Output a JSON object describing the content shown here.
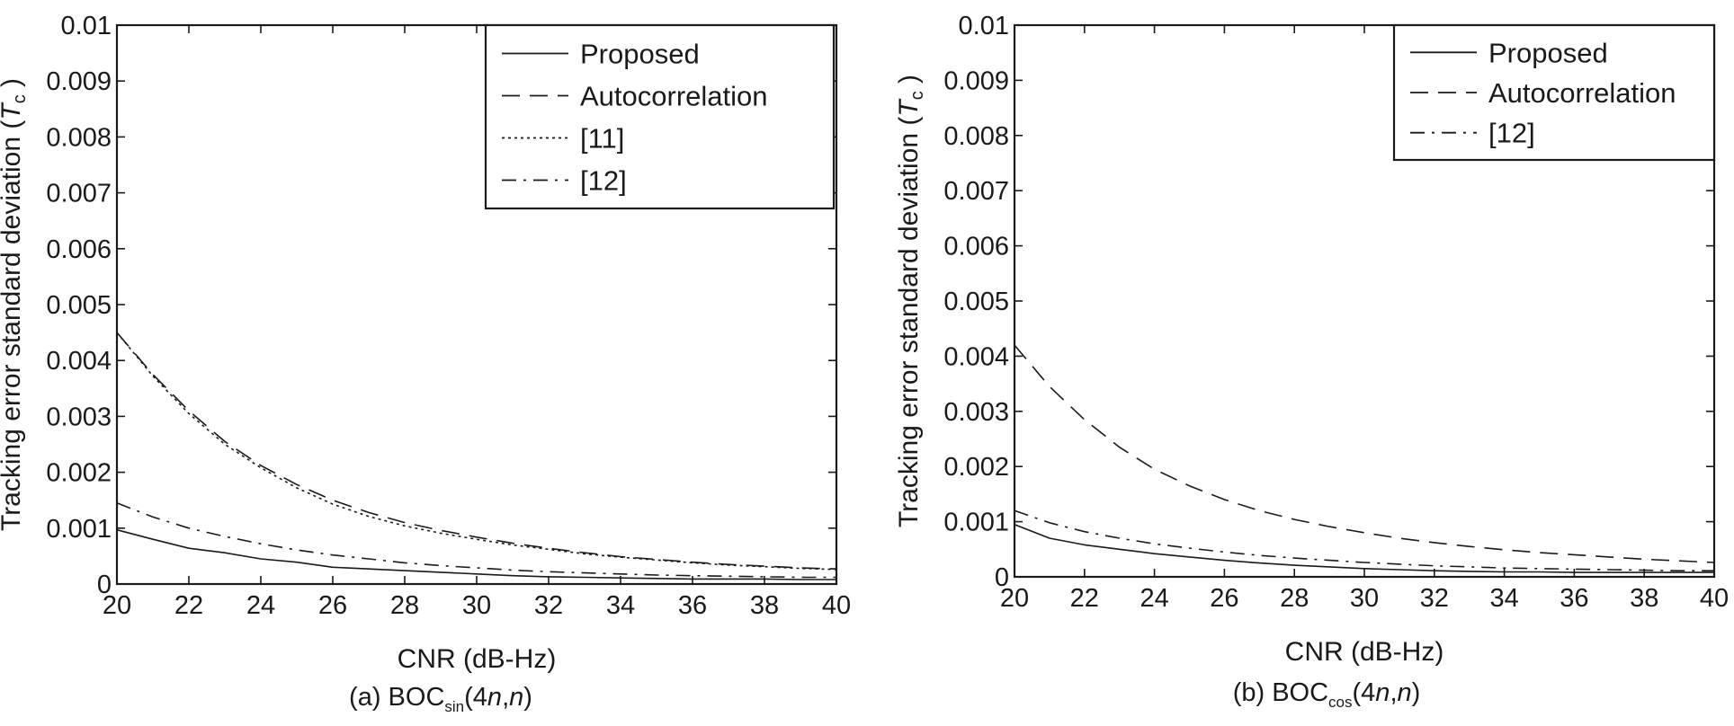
{
  "chart_data": [
    {
      "type": "line",
      "caption": {
        "prefix": "(a) BOC",
        "subscript": "sin",
        "suffix_open": "(4",
        "n1": "n",
        "comma": ",",
        "n2": "n",
        "suffix_close": ")"
      },
      "xlabel": "CNR (dB-Hz)",
      "ylabel": "Tracking error standard deviation (",
      "ylabel_italic": "T",
      "ylabel_sub": "c",
      "ylabel_close": ")",
      "xlim": [
        20,
        40
      ],
      "ylim": [
        0,
        0.01
      ],
      "xticks": [
        "20",
        "22",
        "24",
        "26",
        "28",
        "30",
        "32",
        "34",
        "36",
        "38",
        "40"
      ],
      "yticks": [
        "0",
        "0.001",
        "0.002",
        "0.003",
        "0.004",
        "0.005",
        "0.006",
        "0.007",
        "0.008",
        "0.009",
        "0.01"
      ],
      "grid": false,
      "legend_position": "top-right",
      "x": [
        20,
        21,
        22,
        23,
        24,
        25,
        26,
        27,
        28,
        29,
        30,
        31,
        32,
        33,
        34,
        35,
        36,
        37,
        38,
        39,
        40
      ],
      "series": [
        {
          "name": "Proposed",
          "style": "solid",
          "values": [
            0.00097,
            0.0008,
            0.00064,
            0.00056,
            0.00045,
            0.00039,
            0.0003,
            0.00027,
            0.00024,
            0.00021,
            0.00018,
            0.00015,
            0.00013,
            0.00012,
            0.00011,
            0.0001,
            9e-05,
            9e-05,
            9e-05,
            8e-05,
            8e-05
          ]
        },
        {
          "name": "Autocorrelation",
          "style": "dashed",
          "values": [
            0.0045,
            0.00375,
            0.0031,
            0.00255,
            0.00212,
            0.00178,
            0.0015,
            0.00128,
            0.0011,
            0.00096,
            0.00084,
            0.00073,
            0.00064,
            0.00056,
            0.00049,
            0.00044,
            0.00039,
            0.00035,
            0.00032,
            0.00029,
            0.00027
          ]
        },
        {
          "name": "[11]",
          "style": "dotted",
          "values": [
            0.0045,
            0.00372,
            0.00305,
            0.0025,
            0.00208,
            0.00172,
            0.00143,
            0.00121,
            0.00104,
            0.00091,
            0.0008,
            0.0007,
            0.00062,
            0.00054,
            0.00048,
            0.00043,
            0.00038,
            0.00034,
            0.00031,
            0.00028,
            0.00026
          ]
        },
        {
          "name": "[12]",
          "style": "dashdot",
          "values": [
            0.00145,
            0.0012,
            0.001,
            0.00085,
            0.00072,
            0.00061,
            0.00052,
            0.00045,
            0.00038,
            0.00033,
            0.00029,
            0.00025,
            0.00022,
            0.0002,
            0.00018,
            0.00016,
            0.00015,
            0.00014,
            0.00013,
            0.00012,
            0.00012
          ]
        }
      ]
    },
    {
      "type": "line",
      "caption": {
        "prefix": "(b) BOC",
        "subscript": "cos",
        "suffix_open": "(4",
        "n1": "n",
        "comma": ",",
        "n2": "n",
        "suffix_close": ")"
      },
      "xlabel": "CNR (dB-Hz)",
      "ylabel": "Tracking error standard deviation (",
      "ylabel_italic": "T",
      "ylabel_sub": "c",
      "ylabel_close": ")",
      "xlim": [
        20,
        40
      ],
      "ylim": [
        0,
        0.01
      ],
      "xticks": [
        "20",
        "22",
        "24",
        "26",
        "28",
        "30",
        "32",
        "34",
        "36",
        "38",
        "40"
      ],
      "yticks": [
        "0",
        "0.001",
        "0.002",
        "0.003",
        "0.004",
        "0.005",
        "0.006",
        "0.007",
        "0.008",
        "0.009",
        "0.01"
      ],
      "grid": false,
      "legend_position": "top-right",
      "x": [
        20,
        21,
        22,
        23,
        24,
        25,
        26,
        27,
        28,
        29,
        30,
        31,
        32,
        33,
        34,
        35,
        36,
        37,
        38,
        39,
        40
      ],
      "series": [
        {
          "name": "Proposed",
          "style": "solid",
          "values": [
            0.00095,
            0.0007,
            0.00058,
            0.0005,
            0.00042,
            0.00036,
            0.0003,
            0.00025,
            0.00021,
            0.00018,
            0.00015,
            0.00013,
            0.00011,
            0.0001,
            9e-05,
            9e-05,
            8e-05,
            8e-05,
            8e-05,
            8e-05,
            8e-05
          ]
        },
        {
          "name": "Autocorrelation",
          "style": "dashed",
          "values": [
            0.0042,
            0.00345,
            0.00285,
            0.00235,
            0.00195,
            0.00165,
            0.0014,
            0.0012,
            0.00104,
            0.00091,
            0.0008,
            0.0007,
            0.00062,
            0.00055,
            0.00049,
            0.00044,
            0.0004,
            0.00036,
            0.00032,
            0.00029,
            0.00026
          ]
        },
        {
          "name": "[12]",
          "style": "dashdot",
          "values": [
            0.0012,
            0.00098,
            0.00082,
            0.0007,
            0.0006,
            0.00052,
            0.00045,
            0.00039,
            0.00034,
            0.0003,
            0.00026,
            0.00023,
            0.0002,
            0.00018,
            0.00016,
            0.00015,
            0.00014,
            0.00013,
            0.00012,
            0.00011,
            0.00011
          ]
        }
      ]
    }
  ]
}
